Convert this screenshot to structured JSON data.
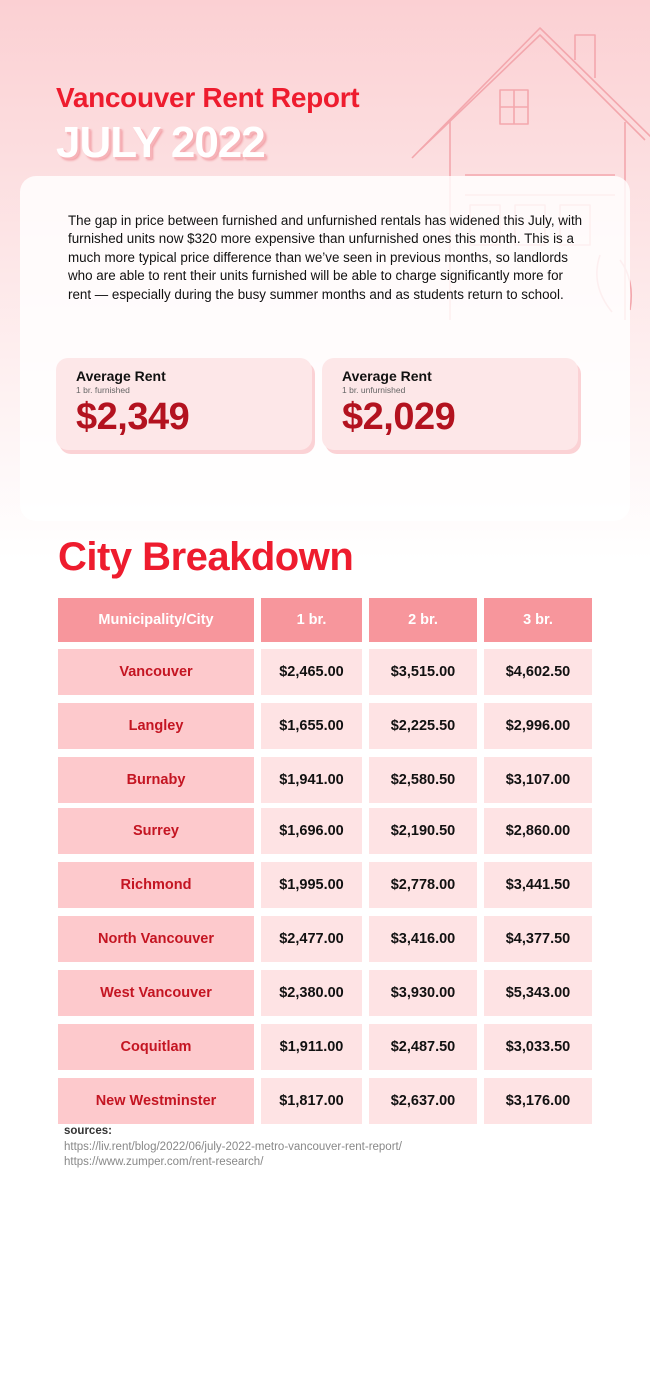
{
  "header": {
    "title": "Vancouver Rent Report",
    "subtitle": "JULY 2022"
  },
  "intro": "The gap in price between furnished and unfurnished rentals has widened this July, with furnished units now $320 more expensive than unfurnished ones this month. This is a much more typical price difference than we’ve seen in previous months, so landlords who are able to rent their units furnished will be able to charge significantly more for rent — especially during the busy summer months and as students return to school.",
  "stats": [
    {
      "label": "Average Rent",
      "sub": "1 br. furnished",
      "value": "$2,349"
    },
    {
      "label": "Average Rent",
      "sub": "1 br. unfurnished",
      "value": "$2,029"
    }
  ],
  "breakdown": {
    "title": "City Breakdown",
    "headers": [
      "Municipality/City",
      "1 br.",
      "2 br.",
      "3 br."
    ],
    "rows": [
      [
        "Vancouver",
        "$2,465.00",
        "$3,515.00",
        "$4,602.50"
      ],
      [
        "Langley",
        "$1,655.00",
        "$2,225.50",
        "$2,996.00"
      ],
      [
        "Burnaby",
        "$1,941.00",
        "$2,580.50",
        "$3,107.00"
      ],
      [
        "Surrey",
        "$1,696.00",
        "$2,190.50",
        "$2,860.00"
      ],
      [
        "Richmond",
        "$1,995.00",
        "$2,778.00",
        "$3,441.50"
      ],
      [
        "North Vancouver",
        "$2,477.00",
        "$3,416.00",
        "$4,377.50"
      ],
      [
        "West Vancouver",
        "$2,380.00",
        "$3,930.00",
        "$5,343.00"
      ],
      [
        "Coquitlam",
        "$1,911.00",
        "$2,487.50",
        "$3,033.50"
      ],
      [
        "New Westminster",
        "$1,817.00",
        "$2,637.00",
        "$3,176.00"
      ]
    ]
  },
  "sources": {
    "label": "sources:",
    "links": [
      "https://liv.rent/blog/2022/06/july-2022-metro-vancouver-rent-report/",
      "https://www.zumper.com/rent-research/"
    ]
  },
  "colors": {
    "accent": "#ee1c2e",
    "value": "#b3121f",
    "header_cell": "#f7969c",
    "city_cell": "#fdc9cc",
    "price_cell": "#fee3e4"
  },
  "icons": [
    "house-outline-icon"
  ]
}
